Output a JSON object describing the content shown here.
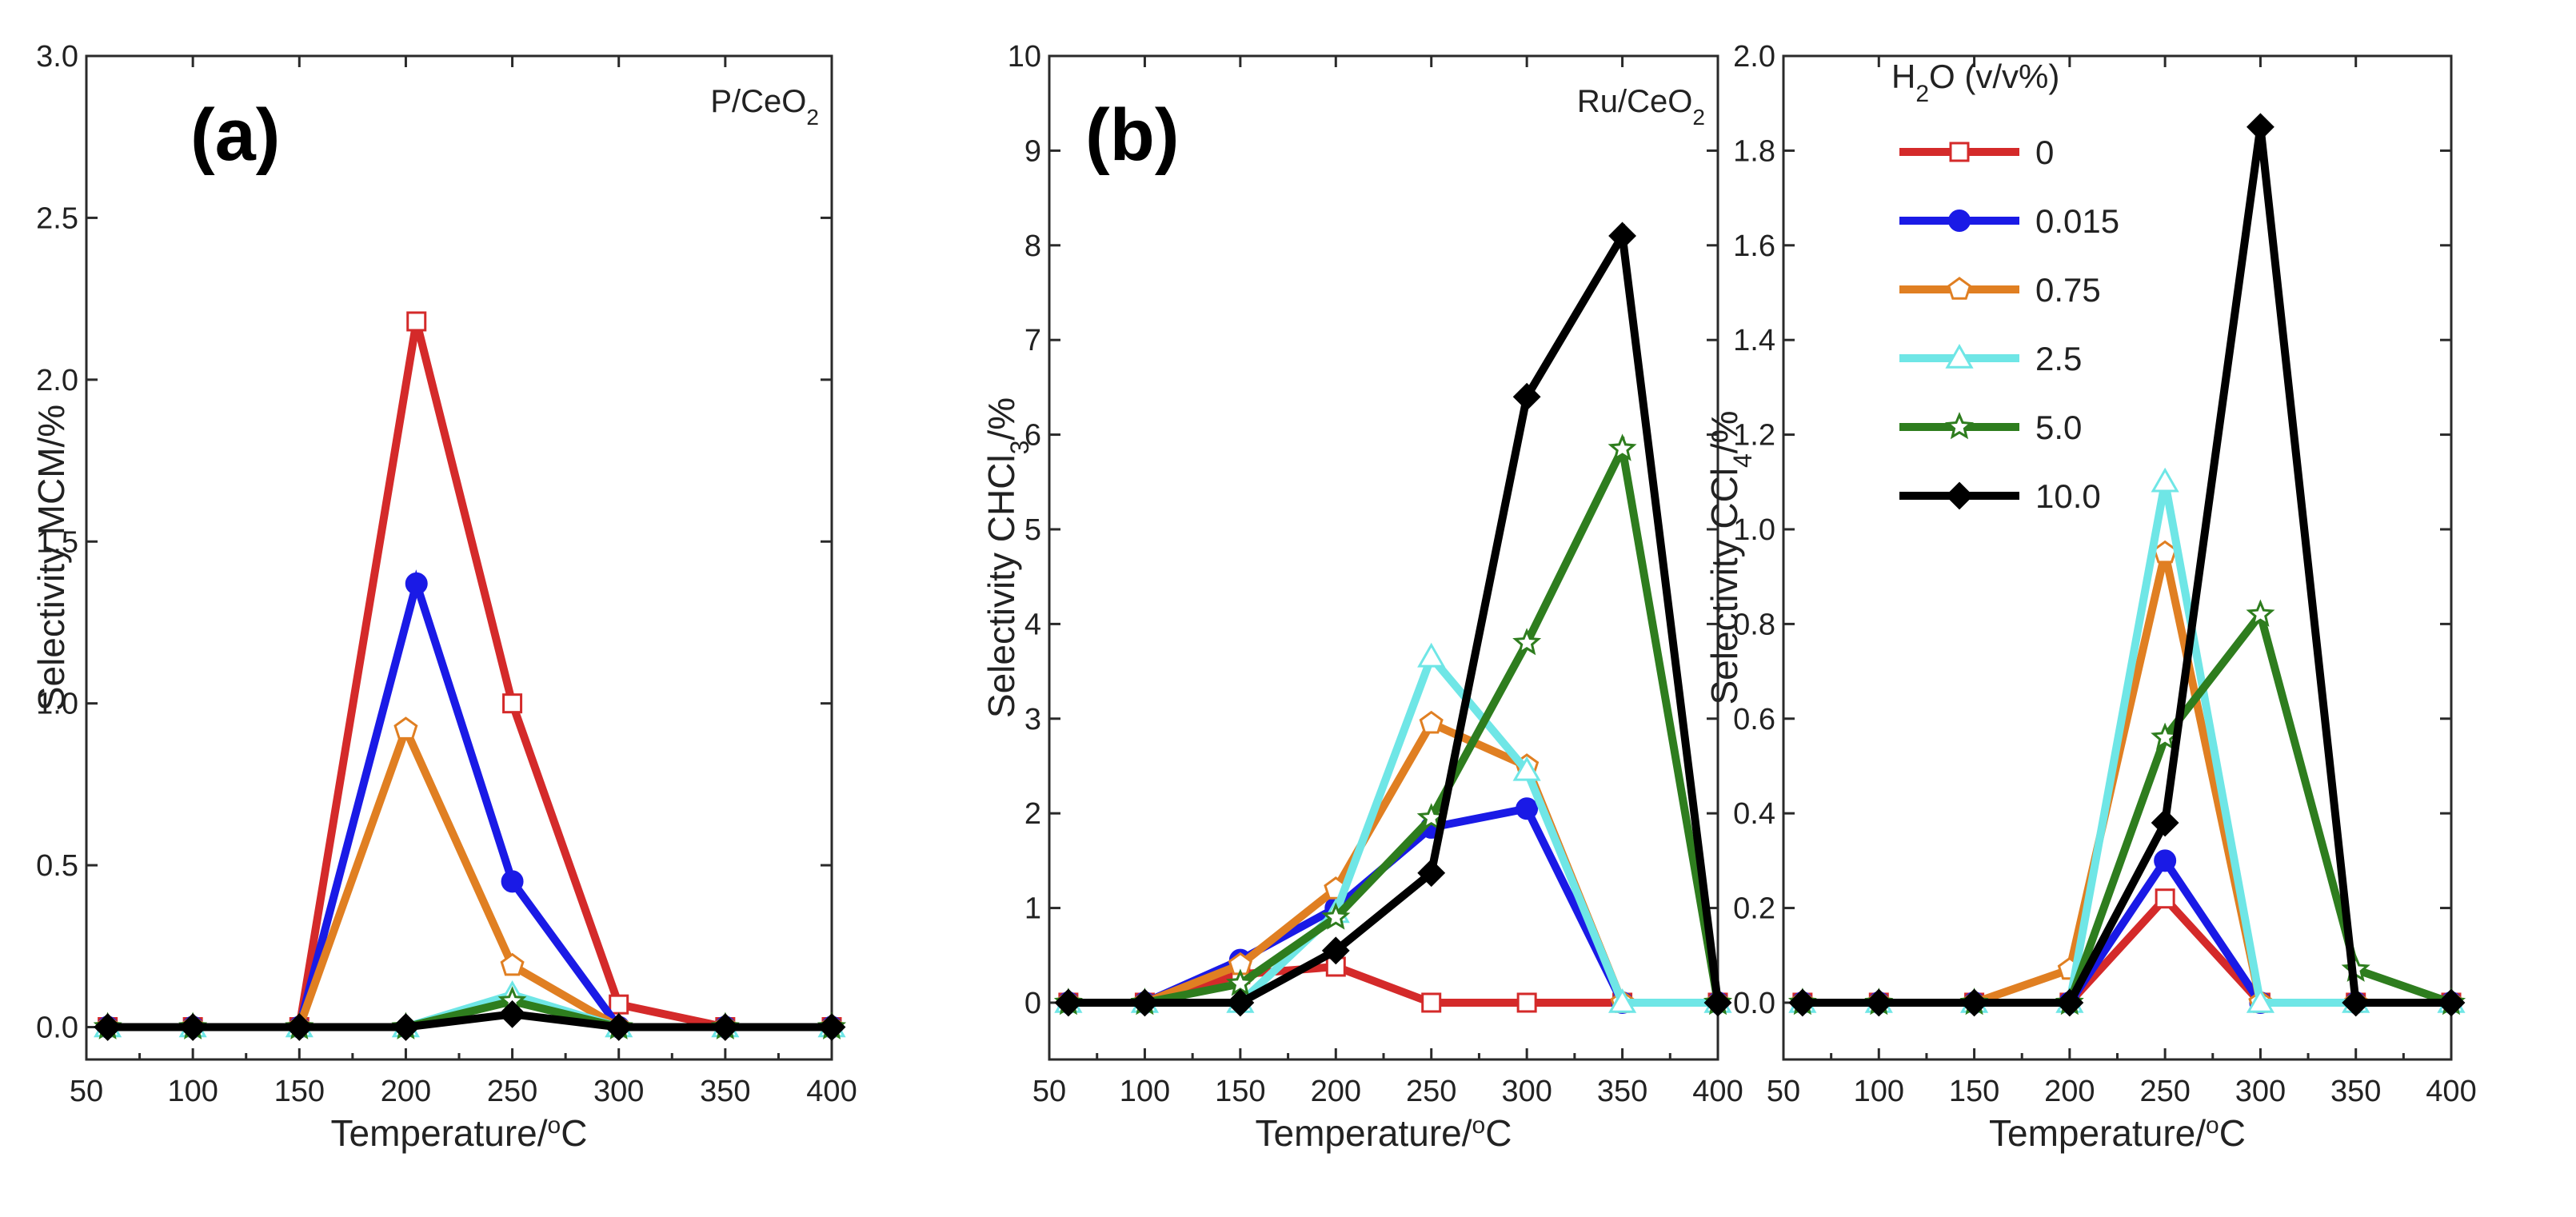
{
  "chart_data": [
    {
      "type": "line",
      "panel_tag": "(a)",
      "catalyst": "P/CeO",
      "catalyst_sub": "2",
      "xlabel": "Temperature/",
      "xlabel_sup": "o",
      "xlabel_unit": "C",
      "ylabel": "Selectivity MCM/%",
      "xlim": [
        50,
        400
      ],
      "ylim": [
        -0.1,
        3.0
      ],
      "xticks": [
        "50",
        "100",
        "150",
        "200",
        "250",
        "300",
        "350",
        "400"
      ],
      "yticks": [
        "0.0",
        "0.5",
        "1.0",
        "1.5",
        "2.0",
        "2.5",
        "3.0"
      ],
      "series": [
        {
          "name": "0",
          "color": "#d42a2a",
          "marker": "square-open",
          "x": [
            60,
            100,
            150,
            205,
            250,
            300,
            350,
            400
          ],
          "y": [
            0,
            0,
            0,
            2.18,
            1.0,
            0.07,
            0,
            0
          ]
        },
        {
          "name": "0.015",
          "color": "#1a1ae6",
          "marker": "circle",
          "x": [
            60,
            100,
            150,
            205,
            250,
            300,
            350,
            400
          ],
          "y": [
            0,
            0,
            0,
            1.37,
            0.45,
            0,
            0,
            0
          ]
        },
        {
          "name": "0.75",
          "color": "#e07f22",
          "marker": "pentagon-open",
          "x": [
            60,
            100,
            150,
            200,
            250,
            300,
            350,
            400
          ],
          "y": [
            0,
            0,
            0,
            0.92,
            0.19,
            0,
            0,
            0
          ]
        },
        {
          "name": "2.5",
          "color": "#6fe6e6",
          "marker": "triangle-open",
          "x": [
            60,
            100,
            150,
            200,
            250,
            300,
            350,
            400
          ],
          "y": [
            0,
            0,
            0,
            0,
            0.1,
            0,
            0,
            0
          ]
        },
        {
          "name": "5.0",
          "color": "#2e7d1e",
          "marker": "star-open",
          "x": [
            60,
            100,
            150,
            200,
            250,
            300,
            350,
            400
          ],
          "y": [
            0,
            0,
            0,
            0,
            0.08,
            0,
            0,
            0
          ]
        },
        {
          "name": "10.0",
          "color": "#000000",
          "marker": "diamond",
          "x": [
            60,
            100,
            150,
            200,
            250,
            300,
            350,
            400
          ],
          "y": [
            0,
            0,
            0,
            0,
            0.04,
            0,
            0,
            0
          ]
        }
      ]
    },
    {
      "type": "line",
      "panel_tag": "(b)",
      "catalyst": "Ru/CeO",
      "catalyst_sub": "2",
      "xlabel": "Temperature/",
      "xlabel_sup": "o",
      "xlabel_unit": "C",
      "ylabel": "Selectivity CHCl",
      "ylabel_sub": "3",
      "ylabel_suffix": "/%",
      "xlim": [
        50,
        400
      ],
      "ylim": [
        -0.6,
        10
      ],
      "xticks": [
        "50",
        "100",
        "150",
        "200",
        "250",
        "300",
        "350",
        "400"
      ],
      "yticks": [
        "0",
        "1",
        "2",
        "3",
        "4",
        "5",
        "6",
        "7",
        "8",
        "9",
        "10"
      ],
      "series": [
        {
          "name": "0",
          "color": "#d42a2a",
          "marker": "square-open",
          "x": [
            60,
            100,
            150,
            200,
            250,
            300,
            350,
            400
          ],
          "y": [
            0,
            0,
            0.3,
            0.38,
            0,
            0,
            0,
            0
          ]
        },
        {
          "name": "0.015",
          "color": "#1a1ae6",
          "marker": "circle",
          "x": [
            60,
            100,
            150,
            200,
            250,
            300,
            350,
            400
          ],
          "y": [
            0,
            0,
            0.45,
            1.0,
            1.85,
            2.05,
            0,
            0
          ]
        },
        {
          "name": "0.75",
          "color": "#e07f22",
          "marker": "pentagon-open",
          "x": [
            60,
            100,
            150,
            200,
            250,
            300,
            350,
            400
          ],
          "y": [
            0,
            0,
            0.4,
            1.2,
            2.95,
            2.5,
            0,
            0
          ]
        },
        {
          "name": "2.5",
          "color": "#6fe6e6",
          "marker": "triangle-open",
          "x": [
            60,
            100,
            150,
            200,
            250,
            300,
            350,
            400
          ],
          "y": [
            0,
            0,
            0,
            0.95,
            3.65,
            2.45,
            0,
            0
          ]
        },
        {
          "name": "5.0",
          "color": "#2e7d1e",
          "marker": "star-open",
          "x": [
            60,
            100,
            150,
            200,
            250,
            300,
            350,
            400
          ],
          "y": [
            0,
            0,
            0.2,
            0.9,
            1.95,
            3.8,
            5.85,
            0
          ]
        },
        {
          "name": "10.0",
          "color": "#000000",
          "marker": "diamond",
          "x": [
            60,
            100,
            150,
            200,
            250,
            300,
            350,
            400
          ],
          "y": [
            0,
            0,
            0,
            0.55,
            1.37,
            6.4,
            8.1,
            0
          ]
        }
      ]
    },
    {
      "type": "line",
      "panel_tag": "",
      "xlabel": "Temperature/",
      "xlabel_sup": "o",
      "xlabel_unit": "C",
      "ylabel": "Selectivity CCl",
      "ylabel_sub": "4",
      "ylabel_suffix": "/%",
      "xlim": [
        50,
        400
      ],
      "ylim": [
        -0.12,
        2.0
      ],
      "xticks": [
        "50",
        "100",
        "150",
        "200",
        "250",
        "300",
        "350",
        "400"
      ],
      "yticks": [
        "0.0",
        "0.2",
        "0.4",
        "0.6",
        "0.8",
        "1.0",
        "1.2",
        "1.4",
        "1.6",
        "1.8",
        "2.0"
      ],
      "series": [
        {
          "name": "0",
          "color": "#d42a2a",
          "marker": "square-open",
          "x": [
            60,
            100,
            150,
            200,
            250,
            300,
            350,
            400
          ],
          "y": [
            0,
            0,
            0,
            0,
            0.22,
            0,
            0,
            0
          ]
        },
        {
          "name": "0.015",
          "color": "#1a1ae6",
          "marker": "circle",
          "x": [
            60,
            100,
            150,
            200,
            250,
            300,
            350,
            400
          ],
          "y": [
            0,
            0,
            0,
            0,
            0.3,
            0,
            0,
            0
          ]
        },
        {
          "name": "0.75",
          "color": "#e07f22",
          "marker": "pentagon-open",
          "x": [
            60,
            100,
            150,
            200,
            250,
            300,
            350,
            400
          ],
          "y": [
            0,
            0,
            0,
            0.07,
            0.95,
            0,
            0,
            0
          ]
        },
        {
          "name": "2.5",
          "color": "#6fe6e6",
          "marker": "triangle-open",
          "x": [
            60,
            100,
            150,
            200,
            250,
            300,
            350,
            400
          ],
          "y": [
            0,
            0,
            0,
            0,
            1.1,
            0,
            0,
            0
          ]
        },
        {
          "name": "5.0",
          "color": "#2e7d1e",
          "marker": "star-open",
          "x": [
            60,
            100,
            150,
            200,
            250,
            300,
            350,
            400
          ],
          "y": [
            0,
            0,
            0,
            0,
            0.56,
            0.82,
            0.07,
            0
          ]
        },
        {
          "name": "10.0",
          "color": "#000000",
          "marker": "diamond",
          "x": [
            60,
            100,
            150,
            200,
            250,
            300,
            350,
            400
          ],
          "y": [
            0,
            0,
            0,
            0,
            0.38,
            1.85,
            0,
            0
          ]
        }
      ]
    }
  ],
  "legend": {
    "title": "H",
    "title_sub": "2",
    "title_suffix": "O (v/v%)",
    "placement": "top-left of third panel",
    "entries": [
      {
        "label": "0",
        "color": "#d42a2a",
        "marker": "square-open"
      },
      {
        "label": "0.015",
        "color": "#1a1ae6",
        "marker": "circle"
      },
      {
        "label": "0.75",
        "color": "#e07f22",
        "marker": "pentagon-open"
      },
      {
        "label": "2.5",
        "color": "#6fe6e6",
        "marker": "triangle-open"
      },
      {
        "label": "5.0",
        "color": "#2e7d1e",
        "marker": "star-open"
      },
      {
        "label": "10.0",
        "color": "#000000",
        "marker": "diamond"
      }
    ]
  }
}
